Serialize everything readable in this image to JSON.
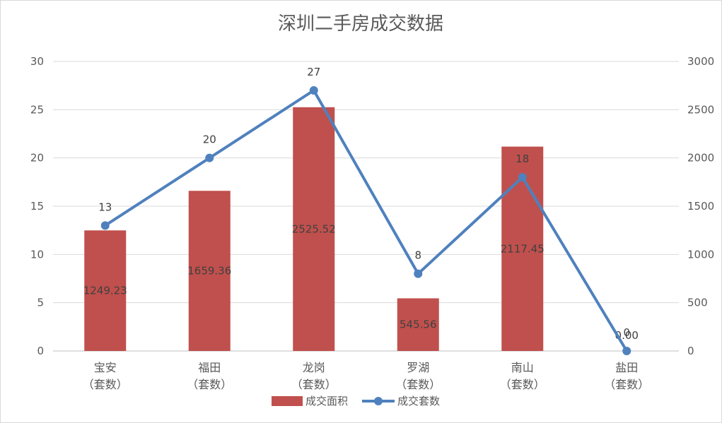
{
  "chart_data": {
    "type": "bar",
    "title": "深圳二手房成交数据",
    "categories": [
      [
        "宝安",
        "（套数）"
      ],
      [
        "福田",
        "（套数）"
      ],
      [
        "龙岗",
        "（套数）"
      ],
      [
        "罗湖",
        "（套数）"
      ],
      [
        "南山",
        "（套数）"
      ],
      [
        "盐田",
        "（套数）"
      ]
    ],
    "left_axis": {
      "min": 0,
      "max": 30,
      "step": 5,
      "ticks": [
        "0",
        "5",
        "10",
        "15",
        "20",
        "25",
        "30"
      ]
    },
    "right_axis": {
      "min": 0,
      "max": 3000,
      "step": 500,
      "ticks": [
        "0",
        "500",
        "1000",
        "1500",
        "2000",
        "2500",
        "3000"
      ]
    },
    "series": [
      {
        "name": "成交面积",
        "type": "bar",
        "axis": "right",
        "color": "#c0504d",
        "values": [
          1249.23,
          1659.36,
          2525.52,
          545.56,
          2117.45,
          0.0
        ],
        "labels": [
          "1249.23",
          "1659.36",
          "2525.52",
          "545.56",
          "2117.45",
          "0.00"
        ]
      },
      {
        "name": "成交套数",
        "type": "line",
        "axis": "left",
        "color": "#4f81bd",
        "values": [
          13,
          20,
          27,
          8,
          18,
          0
        ],
        "labels": [
          "13",
          "20",
          "27",
          "8",
          "18",
          "0"
        ]
      }
    ],
    "grid": true,
    "legend": "bottom-center"
  }
}
